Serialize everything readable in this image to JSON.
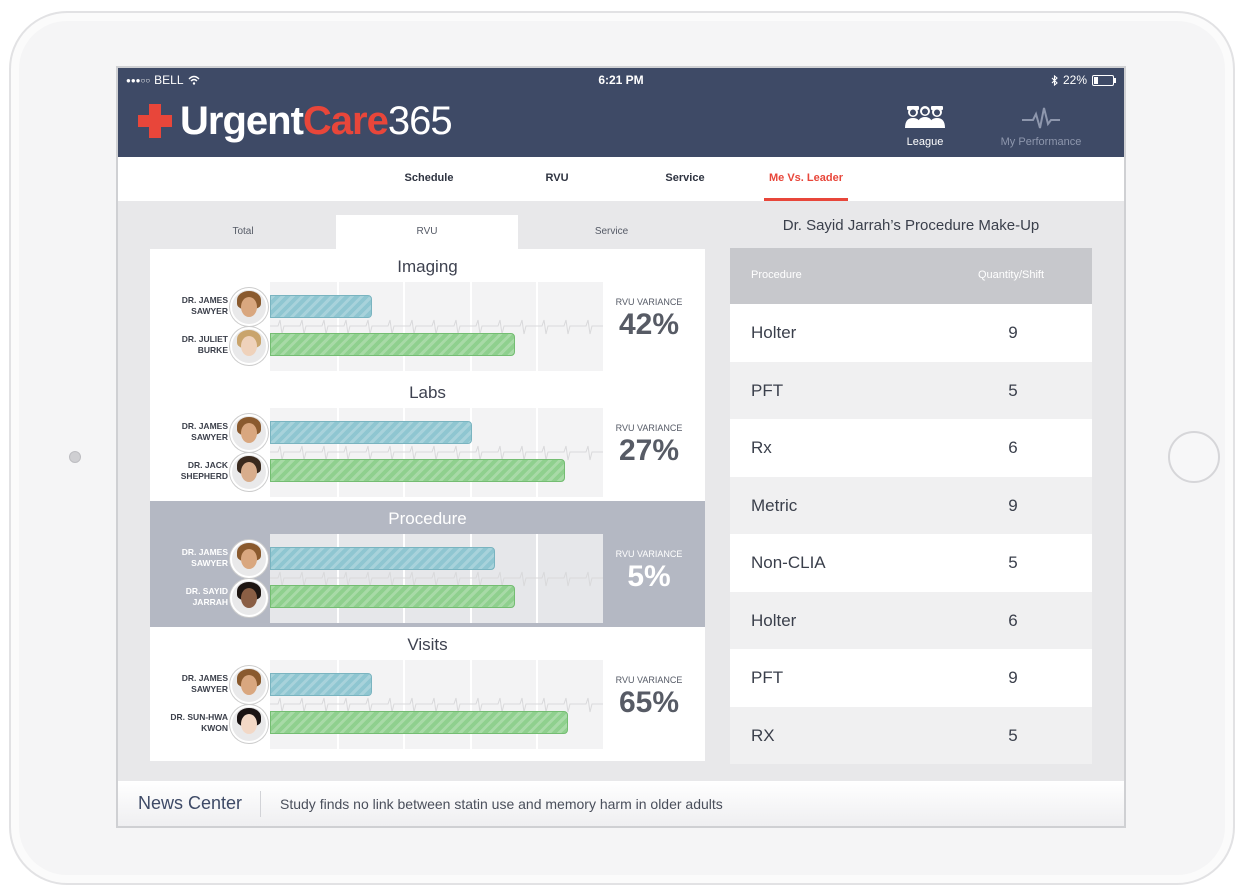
{
  "status_bar": {
    "carrier": "BELL",
    "time": "6:21 PM",
    "battery": "22%"
  },
  "header": {
    "logo_part1": "Urgent",
    "logo_part2": "Care",
    "logo_part3": "365",
    "league_label": "League",
    "performance_label": "My Performance"
  },
  "tabs": [
    {
      "label": "Schedule"
    },
    {
      "label": "RVU"
    },
    {
      "label": "Service"
    },
    {
      "label": "Me Vs. Leader"
    }
  ],
  "sub_tabs": [
    {
      "label": "Total"
    },
    {
      "label": "RVU"
    },
    {
      "label": "Service"
    }
  ],
  "metrics": [
    {
      "title": "Imaging",
      "variance_label": "RVU VARIANCE",
      "variance_value": "42%",
      "doc1": {
        "line1": "DR. JAMES",
        "line2": "SAWYER",
        "bar_fraction": 0.3
      },
      "doc2": {
        "line1": "DR. JULIET",
        "line2": "BURKE",
        "bar_fraction": 0.73
      }
    },
    {
      "title": "Labs",
      "variance_label": "RVU VARIANCE",
      "variance_value": "27%",
      "doc1": {
        "line1": "DR. JAMES",
        "line2": "SAWYER",
        "bar_fraction": 0.6
      },
      "doc2": {
        "line1": "DR. JACK",
        "line2": "SHEPHERD",
        "bar_fraction": 0.88
      }
    },
    {
      "title": "Procedure",
      "variance_label": "RVU VARIANCE",
      "variance_value": "5%",
      "doc1": {
        "line1": "DR. JAMES",
        "line2": "SAWYER",
        "bar_fraction": 0.67
      },
      "doc2": {
        "line1": "DR. SAYID",
        "line2": "JARRAH",
        "bar_fraction": 0.73
      }
    },
    {
      "title": "Visits",
      "variance_label": "RVU VARIANCE",
      "variance_value": "65%",
      "doc1": {
        "line1": "DR. JAMES",
        "line2": "SAWYER",
        "bar_fraction": 0.3
      },
      "doc2": {
        "line1": "DR. SUN-HWA",
        "line2": "KWON",
        "bar_fraction": 0.89
      }
    }
  ],
  "procedure_panel": {
    "title": "Dr. Sayid Jarrah’s Procedure Make-Up",
    "col_procedure": "Procedure",
    "col_quantity": "Quantity/Shift",
    "rows": [
      {
        "procedure": "Holter",
        "quantity": "9"
      },
      {
        "procedure": "PFT",
        "quantity": "5"
      },
      {
        "procedure": "Rx",
        "quantity": "6"
      },
      {
        "procedure": "Metric",
        "quantity": "9"
      },
      {
        "procedure": "Non-CLIA",
        "quantity": "5"
      },
      {
        "procedure": "Holter",
        "quantity": "6"
      },
      {
        "procedure": "PFT",
        "quantity": "9"
      },
      {
        "procedure": "RX",
        "quantity": "5"
      }
    ]
  },
  "news": {
    "title": "News Center",
    "headline": "Study finds no link between statin use and memory harm in older adults"
  },
  "colors": {
    "header_bg": "#3e4a66",
    "accent_red": "#e8463a",
    "bar_blue": "#8fc6d1",
    "bar_green": "#8fd08e",
    "highlight_row": "#b4b8c3"
  }
}
